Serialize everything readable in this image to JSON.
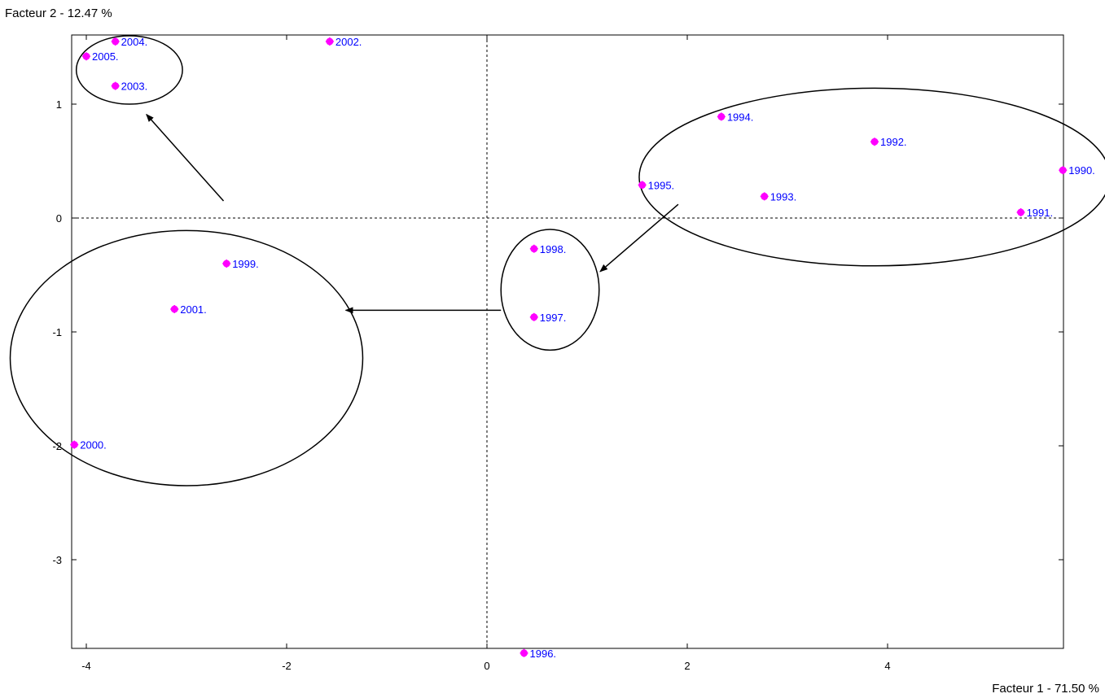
{
  "chart_data": {
    "type": "scatter",
    "xlabel": "Facteur 1  -  71.50 %",
    "ylabel": "Facteur 2  -  12.47 %",
    "xlim": [
      -4.2,
      5.8
    ],
    "ylim": [
      -3.9,
      1.6
    ],
    "x_ticks": [
      -4,
      -2,
      0,
      2,
      4
    ],
    "y_ticks": [
      1,
      0,
      -1,
      -2,
      -3
    ],
    "grid": false,
    "reference_lines": [
      "x=0 dashed",
      "y=0 dashed"
    ],
    "colors": {
      "marker": "#ff00ff",
      "label": "#0000ff",
      "axis": "#000000"
    },
    "points": [
      {
        "label": "1990.",
        "x": 5.75,
        "y": 0.42
      },
      {
        "label": "1991.",
        "x": 5.33,
        "y": 0.05
      },
      {
        "label": "1992.",
        "x": 3.87,
        "y": 0.67
      },
      {
        "label": "1993.",
        "x": 2.77,
        "y": 0.19
      },
      {
        "label": "1994.",
        "x": 2.34,
        "y": 0.89
      },
      {
        "label": "1995.",
        "x": 1.55,
        "y": 0.29
      },
      {
        "label": "1996.",
        "x": 0.37,
        "y": -3.82
      },
      {
        "label": "1997.",
        "x": 0.47,
        "y": -0.87
      },
      {
        "label": "1998.",
        "x": 0.47,
        "y": -0.27
      },
      {
        "label": "1999.",
        "x": -2.6,
        "y": -0.4
      },
      {
        "label": "2000.",
        "x": -4.12,
        "y": -1.99
      },
      {
        "label": "2001.",
        "x": -3.12,
        "y": -0.8
      },
      {
        "label": "2002.",
        "x": -1.57,
        "y": 1.55
      },
      {
        "label": "2003.",
        "x": -3.71,
        "y": 1.16
      },
      {
        "label": "2004.",
        "x": -3.71,
        "y": 1.55
      },
      {
        "label": "2005.",
        "x": -4.0,
        "y": 1.42
      }
    ],
    "annotations": {
      "ellipses": [
        {
          "name": "cluster-1990-1995",
          "cx": 3.87,
          "cy": 0.36,
          "rx": 2.35,
          "ry": 0.78
        },
        {
          "name": "cluster-1997-1998",
          "cx": 0.63,
          "cy": -0.63,
          "rx": 0.49,
          "ry": 0.53
        },
        {
          "name": "cluster-1999-2001",
          "cx": -3.0,
          "cy": -1.23,
          "rx": 1.76,
          "ry": 1.12
        },
        {
          "name": "cluster-2003-2005",
          "cx": -3.57,
          "cy": 1.3,
          "rx": 0.53,
          "ry": 0.3
        }
      ],
      "arrows": [
        {
          "name": "arrow-to-1997-1998",
          "from": [
            1.91,
            0.12
          ],
          "to": [
            1.13,
            -0.47
          ]
        },
        {
          "name": "arrow-to-1999-2001",
          "from": [
            0.14,
            -0.81
          ],
          "to": [
            -1.41,
            -0.81
          ]
        },
        {
          "name": "arrow-to-2003-2005",
          "from": [
            -2.63,
            0.15
          ],
          "to": [
            -3.4,
            0.91
          ]
        }
      ]
    }
  }
}
